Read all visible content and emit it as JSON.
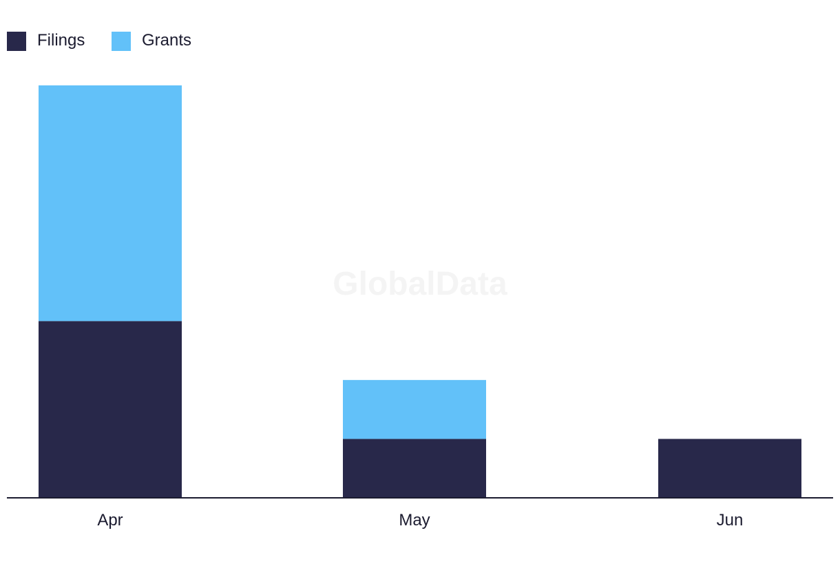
{
  "watermark": "GlobalData",
  "chart_data": {
    "type": "bar",
    "stacked": true,
    "title": "",
    "xlabel": "",
    "ylabel": "",
    "categories": [
      "Apr",
      "May",
      "Jun"
    ],
    "series": [
      {
        "name": "Filings",
        "color": "#28284a",
        "values": [
          3,
          1,
          1
        ]
      },
      {
        "name": "Grants",
        "color": "#62c1f9",
        "values": [
          4,
          1,
          0
        ]
      }
    ],
    "ylim": [
      0,
      7
    ],
    "grid": false,
    "legend": "top-left"
  }
}
